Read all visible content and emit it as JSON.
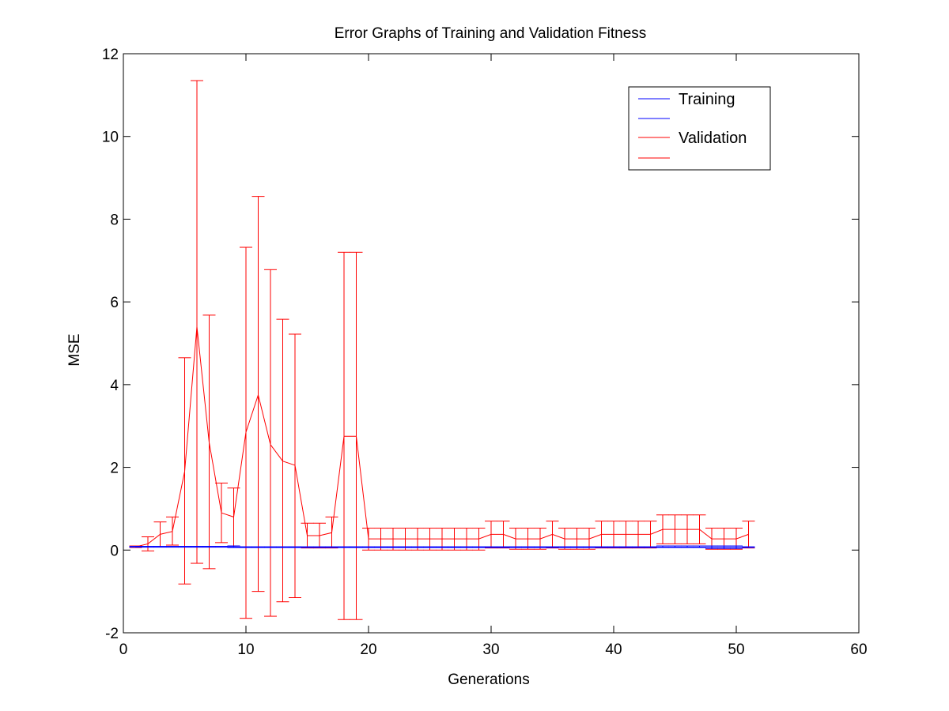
{
  "chart_data": {
    "type": "line",
    "title": "Error Graphs of Training and Validation Fitness",
    "xlabel": "Generations",
    "ylabel": "MSE",
    "xlim": [
      0,
      60
    ],
    "ylim": [
      -2,
      12
    ],
    "xticks": [
      0,
      10,
      20,
      30,
      40,
      50,
      60
    ],
    "yticks": [
      -2,
      0,
      2,
      4,
      6,
      8,
      10,
      12
    ],
    "grid": false,
    "legend_position": "top-right",
    "legend_entries": [
      "Training",
      "",
      "Validation",
      ""
    ],
    "x": [
      1,
      2,
      3,
      4,
      5,
      6,
      7,
      8,
      9,
      10,
      11,
      12,
      13,
      14,
      15,
      16,
      17,
      18,
      19,
      20,
      21,
      22,
      23,
      24,
      25,
      26,
      27,
      28,
      29,
      30,
      31,
      32,
      33,
      34,
      35,
      36,
      37,
      38,
      39,
      40,
      41,
      42,
      43,
      44,
      45,
      46,
      47,
      48,
      49,
      50,
      51
    ],
    "series": [
      {
        "name": "Training",
        "color": "#0000ff",
        "values": [
          0.08,
          0.08,
          0.08,
          0.08,
          0.08,
          0.08,
          0.08,
          0.08,
          0.08,
          0.07,
          0.07,
          0.07,
          0.07,
          0.07,
          0.07,
          0.07,
          0.07,
          0.07,
          0.07,
          0.07,
          0.07,
          0.07,
          0.07,
          0.07,
          0.07,
          0.07,
          0.07,
          0.07,
          0.07,
          0.07,
          0.07,
          0.07,
          0.07,
          0.07,
          0.07,
          0.07,
          0.07,
          0.07,
          0.07,
          0.07,
          0.07,
          0.07,
          0.07,
          0.07,
          0.07,
          0.07,
          0.07,
          0.07,
          0.07,
          0.07,
          0.07
        ],
        "err_low": [
          0.07,
          0.07,
          0.07,
          0.07,
          0.07,
          0.07,
          0.07,
          0.07,
          0.06,
          0.06,
          0.06,
          0.06,
          0.06,
          0.06,
          0.06,
          0.06,
          0.06,
          0.06,
          0.06,
          0.06,
          0.06,
          0.06,
          0.06,
          0.06,
          0.06,
          0.06,
          0.06,
          0.06,
          0.06,
          0.06,
          0.06,
          0.06,
          0.06,
          0.06,
          0.06,
          0.06,
          0.06,
          0.06,
          0.06,
          0.06,
          0.06,
          0.06,
          0.06,
          0.06,
          0.06,
          0.06,
          0.06,
          0.04,
          0.04,
          0.04,
          0.06
        ],
        "err_high": [
          0.09,
          0.09,
          0.09,
          0.09,
          0.09,
          0.09,
          0.09,
          0.09,
          0.1,
          0.08,
          0.08,
          0.08,
          0.08,
          0.08,
          0.08,
          0.08,
          0.08,
          0.08,
          0.08,
          0.08,
          0.08,
          0.08,
          0.08,
          0.08,
          0.08,
          0.08,
          0.08,
          0.08,
          0.08,
          0.08,
          0.08,
          0.08,
          0.08,
          0.08,
          0.08,
          0.08,
          0.08,
          0.08,
          0.08,
          0.08,
          0.08,
          0.08,
          0.08,
          0.1,
          0.1,
          0.1,
          0.1,
          0.1,
          0.1,
          0.1,
          0.08
        ]
      },
      {
        "name": "Validation",
        "color": "#ff0000",
        "values": [
          0.08,
          0.15,
          0.38,
          0.45,
          1.9,
          5.4,
          2.6,
          0.9,
          0.8,
          2.85,
          3.75,
          2.55,
          2.15,
          2.05,
          0.35,
          0.35,
          0.42,
          2.75,
          2.75,
          0.27,
          0.27,
          0.27,
          0.27,
          0.27,
          0.27,
          0.27,
          0.27,
          0.27,
          0.27,
          0.38,
          0.38,
          0.27,
          0.27,
          0.27,
          0.38,
          0.27,
          0.27,
          0.27,
          0.38,
          0.38,
          0.38,
          0.38,
          0.38,
          0.5,
          0.5,
          0.5,
          0.5,
          0.27,
          0.27,
          0.27,
          0.38
        ],
        "err_low": [
          0.06,
          -0.02,
          0.08,
          0.12,
          -0.82,
          -0.32,
          -0.45,
          0.18,
          0.1,
          -1.65,
          -1.0,
          -1.6,
          -1.25,
          -1.15,
          0.05,
          0.05,
          0.05,
          -1.68,
          -1.68,
          0.0,
          0.0,
          0.0,
          0.0,
          0.0,
          0.0,
          0.0,
          0.0,
          0.0,
          0.0,
          0.05,
          0.05,
          0.02,
          0.02,
          0.02,
          0.05,
          0.02,
          0.02,
          0.02,
          0.05,
          0.05,
          0.05,
          0.05,
          0.05,
          0.15,
          0.15,
          0.15,
          0.15,
          0.02,
          0.02,
          0.02,
          0.05
        ],
        "err_high": [
          0.1,
          0.32,
          0.68,
          0.8,
          4.65,
          11.35,
          5.68,
          1.62,
          1.5,
          7.32,
          8.55,
          6.78,
          5.58,
          5.22,
          0.65,
          0.65,
          0.8,
          7.2,
          7.2,
          0.53,
          0.53,
          0.53,
          0.53,
          0.53,
          0.53,
          0.53,
          0.53,
          0.53,
          0.53,
          0.7,
          0.7,
          0.53,
          0.53,
          0.53,
          0.7,
          0.53,
          0.53,
          0.53,
          0.7,
          0.7,
          0.7,
          0.7,
          0.7,
          0.85,
          0.85,
          0.85,
          0.85,
          0.53,
          0.53,
          0.53,
          0.7
        ]
      }
    ]
  }
}
